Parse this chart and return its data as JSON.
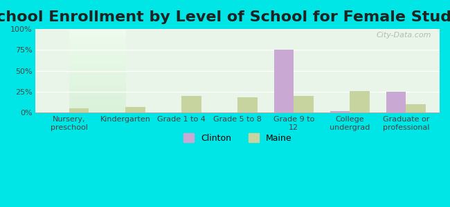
{
  "title": "School Enrollment by Level of School for Female Students",
  "categories": [
    "Nursery,\npreschool",
    "Kindergarten",
    "Grade 1 to 4",
    "Grade 5 to 8",
    "Grade 9 to\n12",
    "College\nundergrad",
    "Graduate or\nprofessional"
  ],
  "clinton_values": [
    0,
    0,
    0,
    0,
    75,
    2,
    25
  ],
  "maine_values": [
    5,
    7,
    20,
    18,
    20,
    26,
    10
  ],
  "clinton_color": "#c9a8d4",
  "maine_color": "#c8d4a0",
  "background_color": "#00e5e5",
  "plot_bg_start": "#e8f5e8",
  "plot_bg_end": "#f5fff5",
  "ylabel_ticks": [
    "0%",
    "25%",
    "50%",
    "75%",
    "100%"
  ],
  "ytick_values": [
    0,
    25,
    50,
    75,
    100
  ],
  "ylim": [
    0,
    100
  ],
  "title_fontsize": 16,
  "watermark": "City-Data.com",
  "legend_labels": [
    "Clinton",
    "Maine"
  ],
  "bar_width": 0.35
}
